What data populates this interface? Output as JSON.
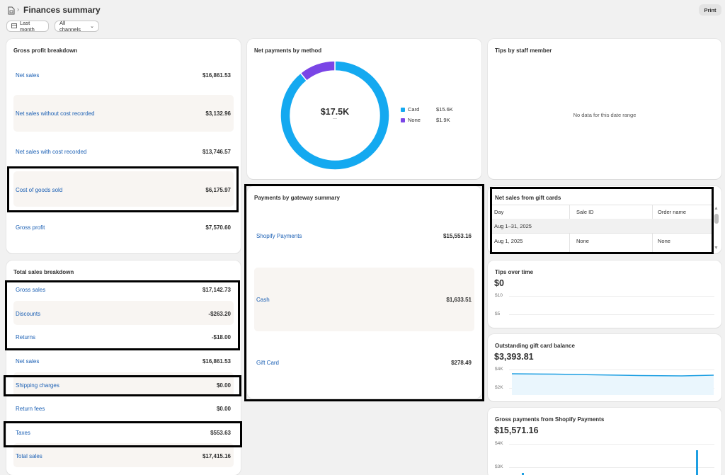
{
  "header": {
    "title": "Finances summary",
    "print_label": "Print",
    "filters": {
      "date": "Last month",
      "channels": "All channels"
    }
  },
  "gross_profit": {
    "title": "Gross profit breakdown",
    "rows": [
      {
        "label": "Net sales",
        "value": "$16,861.53"
      },
      {
        "label": "Net sales without cost recorded",
        "value": "$3,132.96"
      },
      {
        "label": "Net sales with cost recorded",
        "value": "$13,746.57"
      },
      {
        "label": "Cost of goods sold",
        "value": "$6,175.97"
      },
      {
        "label": "Gross profit",
        "value": "$7,570.60"
      }
    ]
  },
  "total_sales": {
    "title": "Total sales breakdown",
    "rows": [
      {
        "label": "Gross sales",
        "value": "$17,142.73"
      },
      {
        "label": "Discounts",
        "value": "-$263.20"
      },
      {
        "label": "Returns",
        "value": "-$18.00"
      },
      {
        "label": "Net sales",
        "value": "$16,861.53"
      },
      {
        "label": "Shipping charges",
        "value": "$0.00"
      },
      {
        "label": "Return fees",
        "value": "$0.00"
      },
      {
        "label": "Taxes",
        "value": "$553.63"
      },
      {
        "label": "Total sales",
        "value": "$17,415.16"
      }
    ]
  },
  "net_payments": {
    "title": "Net payments by method",
    "total": "$17.5K",
    "sub": "—",
    "legend": [
      {
        "name": "Card",
        "value": "$15.6K",
        "color": "#14a9f0"
      },
      {
        "name": "None",
        "value": "$1.9K",
        "color": "#7a45e6"
      }
    ]
  },
  "chart_data": {
    "type": "pie",
    "categories": [
      "Card",
      "None"
    ],
    "values": [
      15.6,
      1.9
    ],
    "title": "Net payments by method"
  },
  "gateway": {
    "title": "Payments by gateway summary",
    "rows": [
      {
        "label": "Shopify Payments",
        "value": "$15,553.16"
      },
      {
        "label": "Cash",
        "value": "$1,633.51"
      },
      {
        "label": "Gift Card",
        "value": "$278.49"
      }
    ]
  },
  "tips_staff": {
    "title": "Tips by staff member",
    "empty": "No data for this date range"
  },
  "gift_cards": {
    "title": "Net sales from gift cards",
    "columns": [
      "Day",
      "Sale ID",
      "Order name"
    ],
    "group": "Aug 1–31, 2025",
    "rows": [
      {
        "day": "Aug 1, 2025",
        "sale": "None",
        "order": "None"
      }
    ]
  },
  "tips_time": {
    "title": "Tips over time",
    "total": "$0",
    "ticks": [
      "$10",
      "$5"
    ]
  },
  "outstanding": {
    "title": "Outstanding gift card balance",
    "total": "$3,393.81",
    "ticks": [
      "$4K",
      "$2K"
    ]
  },
  "gross_payments": {
    "title": "Gross payments from Shopify Payments",
    "total": "$15,571.16",
    "ticks": [
      "$4K",
      "$3K"
    ]
  }
}
